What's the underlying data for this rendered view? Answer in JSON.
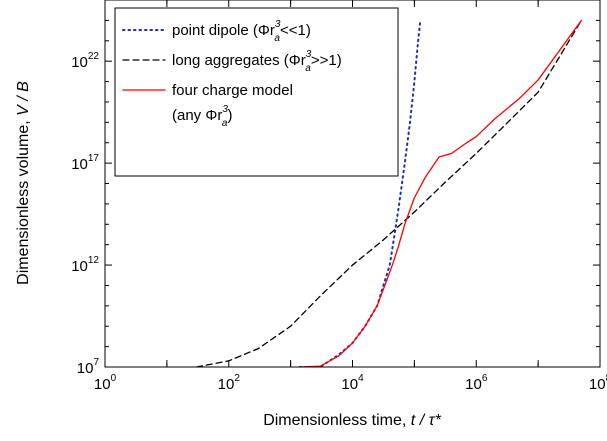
{
  "chart_data": {
    "type": "line",
    "xlabel": "Dimensionless time, ",
    "xlabel_var": "t / τ*",
    "ylabel": "Dimensionless volume, ",
    "ylabel_var": "V / B",
    "x_scale": "log",
    "y_scale": "log",
    "xlim": [
      1,
      100000000
    ],
    "ylim": [
      10000000,
      1e+25
    ],
    "x_ticks": [
      {
        "base": "10",
        "exp": "0",
        "value": 1
      },
      {
        "base": "10",
        "exp": "2",
        "value": 100
      },
      {
        "base": "10",
        "exp": "4",
        "value": 10000
      },
      {
        "base": "10",
        "exp": "6",
        "value": 1000000
      },
      {
        "base": "10",
        "exp": "8",
        "value": 100000000
      }
    ],
    "y_ticks": [
      {
        "base": "10",
        "exp": "7",
        "value": 10000000
      },
      {
        "base": "10",
        "exp": "12",
        "value": 1000000000000
      },
      {
        "base": "10",
        "exp": "17",
        "value": 1e+17
      },
      {
        "base": "10",
        "exp": "22",
        "value": 1e+22
      }
    ],
    "grid": false,
    "legend_position": "top-left",
    "series": [
      {
        "name": "point dipole (Φr",
        "name_sub": "a",
        "name_sup": "3",
        "name_tail": "<<1)",
        "style": "dotted",
        "color": "#1f2fa8",
        "x": [
          1400,
          3000,
          6000,
          10000,
          16000,
          25000,
          40000,
          55000,
          70000,
          85000,
          100000,
          115000,
          125000
        ],
        "y": [
          10000000,
          10000000,
          40000000,
          150000000,
          1000000000,
          10000000000,
          1000000000000,
          500000000000000.0,
          1e+17,
          1e+19,
          1e+21,
          1e+23,
          1e+24
        ]
      },
      {
        "name": "long aggregates (Φr",
        "name_sub": "a",
        "name_sup": "3",
        "name_tail": ">>1)",
        "style": "dashed",
        "color": "#000000",
        "x": [
          30,
          100,
          300,
          1000,
          3000,
          10000,
          30000,
          100000,
          300000,
          1000000,
          3000000,
          10000000,
          50000000
        ],
        "y": [
          10000000,
          20000000,
          80000000,
          1000000000,
          30000000000,
          1000000000000,
          15000000000000,
          400000000000000.0,
          1e+16,
          3e+17,
          8e+18,
          3e+20,
          1e+24
        ]
      },
      {
        "name": "four charge model",
        "name_line2": "(any Φr",
        "name_sub": "a",
        "name_sup": "3",
        "name_tail": ")",
        "style": "solid",
        "color": "#ff0000",
        "x": [
          1400,
          3000,
          6000,
          10000,
          16000,
          25000,
          35000,
          45000,
          55000,
          70000,
          100000,
          150000,
          250000,
          400000,
          700000,
          1000000,
          2000000,
          5000000,
          10000000,
          50000000
        ],
        "y": [
          10000000,
          11000000,
          35000000,
          150000000,
          1000000000,
          10000000000,
          150000000000.0,
          1200000000000.0,
          8000000000000.0,
          100000000000000.0,
          2000000000000000.0,
          2e+16,
          2e+17,
          3e+17,
          1e+18,
          2e+18,
          1.5e+19,
          1.5e+20,
          1.2e+21,
          1e+24
        ]
      }
    ]
  }
}
